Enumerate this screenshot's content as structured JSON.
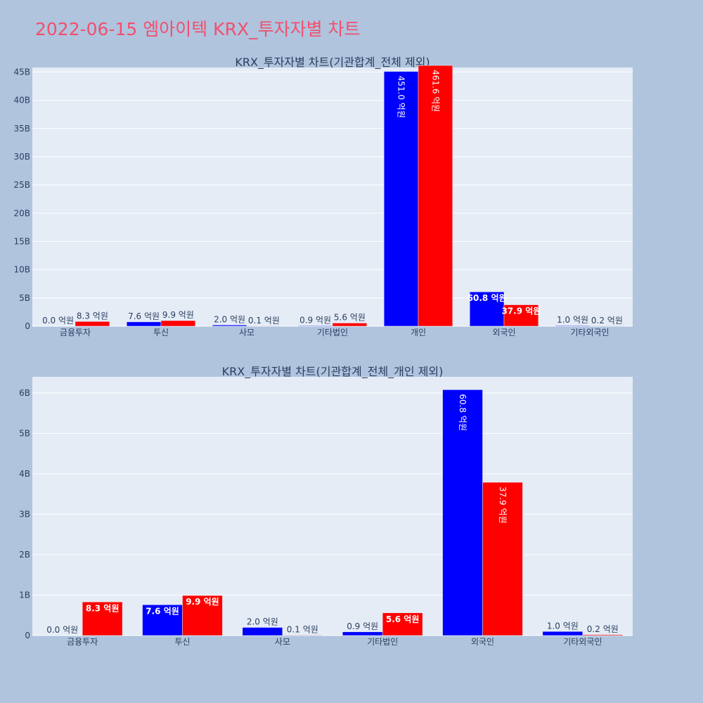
{
  "page_title": "2022-06-15 엠아이텍 KRX_투자자별 차트",
  "chart_data": [
    {
      "type": "bar",
      "title": "KRX_투자자별 차트(기관합계_전체 제외)",
      "categories": [
        "금융투자",
        "투신",
        "사모",
        "기타법인",
        "개인",
        "외국인",
        "기타외국인"
      ],
      "series": [
        {
          "color": "#0000ff",
          "values": [
            0.0,
            0.76,
            0.2,
            0.09,
            45.1,
            6.08,
            0.1
          ],
          "labels": [
            "0.0 억원",
            "7.6 억원",
            "2.0 억원",
            "0.9 억원",
            "451.0 억원",
            "60.8 억원",
            "1.0 억원"
          ]
        },
        {
          "color": "#ff0000",
          "values": [
            0.83,
            0.99,
            0.01,
            0.56,
            46.16,
            3.79,
            0.02
          ],
          "labels": [
            "8.3 억원",
            "9.9 억원",
            "0.1 억원",
            "5.6 억원",
            "461.6 억원",
            "37.9 억원",
            "0.2 억원"
          ]
        }
      ],
      "ylim": [
        0,
        45.8
      ],
      "yticks": [
        0,
        5,
        10,
        15,
        20,
        25,
        30,
        35,
        40,
        45
      ],
      "ytick_labels": [
        "0",
        "5B",
        "10B",
        "15B",
        "20B",
        "25B",
        "30B",
        "35B",
        "40B",
        "45B"
      ],
      "grid": true
    },
    {
      "type": "bar",
      "title": "KRX_투자자별 차트(기관합계_전체_개인 제외)",
      "categories": [
        "금융투자",
        "투신",
        "사모",
        "기타법인",
        "외국인",
        "기타외국인"
      ],
      "series": [
        {
          "color": "#0000ff",
          "values": [
            0.0,
            0.76,
            0.2,
            0.09,
            6.08,
            0.1
          ],
          "labels": [
            "0.0 억원",
            "7.6 억원",
            "2.0 억원",
            "0.9 억원",
            "60.8 억원",
            "1.0 억원"
          ]
        },
        {
          "color": "#ff0000",
          "values": [
            0.83,
            0.99,
            0.01,
            0.56,
            3.79,
            0.02
          ],
          "labels": [
            "8.3 억원",
            "9.9 억원",
            "0.1 억원",
            "5.6 억원",
            "37.9 억원",
            "0.2 억원"
          ]
        }
      ],
      "ylim": [
        0,
        6.4
      ],
      "yticks": [
        0,
        1,
        2,
        3,
        4,
        5,
        6
      ],
      "ytick_labels": [
        "0",
        "1B",
        "2B",
        "3B",
        "4B",
        "5B",
        "6B"
      ],
      "grid": true
    }
  ]
}
